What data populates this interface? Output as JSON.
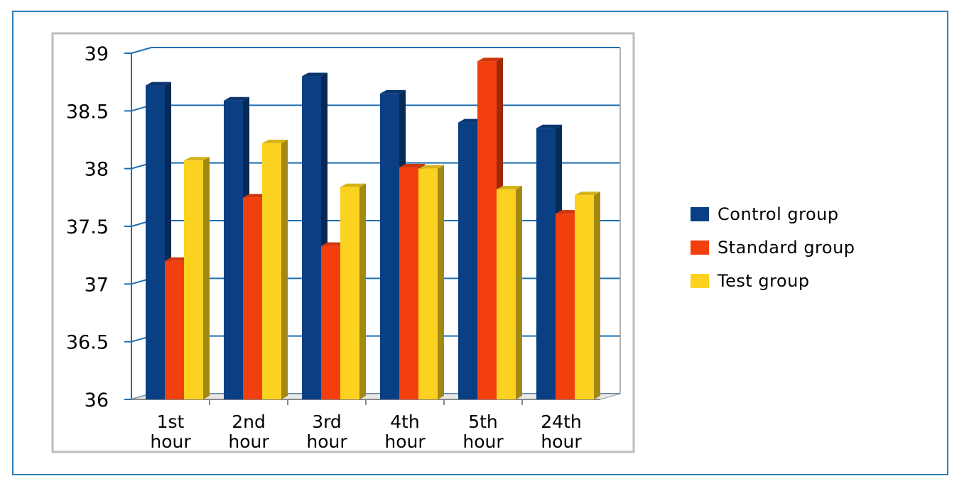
{
  "chart_data": {
    "type": "bar",
    "categories": [
      [
        "1st",
        "hour"
      ],
      [
        "2nd",
        "hour"
      ],
      [
        "3rd",
        "hour"
      ],
      [
        "4th",
        "hour"
      ],
      [
        "5th",
        "hour"
      ],
      [
        "24th",
        "hour"
      ]
    ],
    "series": [
      {
        "name": "Control group",
        "color": "#0b3f84",
        "values": [
          38.72,
          38.59,
          38.8,
          38.65,
          38.4,
          38.35
        ]
      },
      {
        "name": "Standard group",
        "color": "#f33f0e",
        "values": [
          37.2,
          37.75,
          37.33,
          38.01,
          38.93,
          37.61
        ]
      },
      {
        "name": "Test group",
        "color": "#fbd21f",
        "values": [
          38.07,
          38.22,
          37.84,
          38.0,
          37.82,
          37.77
        ]
      }
    ],
    "ylim": [
      36,
      39
    ],
    "yticks": [
      "36",
      "36.5",
      "37",
      "37.5",
      "38",
      "38.5",
      "39"
    ],
    "title": "",
    "xlabel": "",
    "ylabel": "",
    "grid": true,
    "legend_position": "right"
  },
  "colors": {
    "frame_border": "#2f7fb6",
    "plot_border": "#bdbdbd",
    "gridline": "#1f6fb0"
  }
}
